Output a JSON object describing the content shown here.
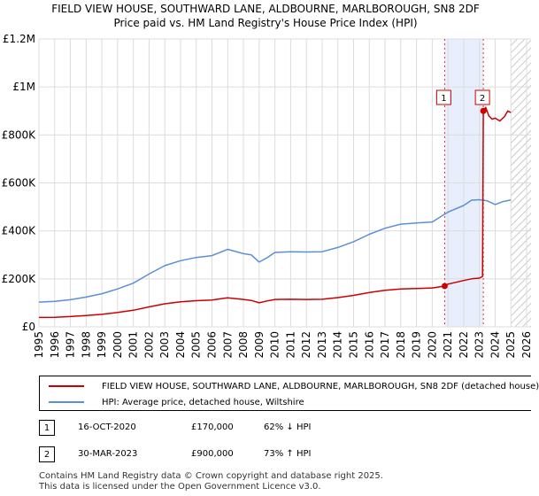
{
  "chart_data": {
    "type": "line",
    "title_line1": "FIELD VIEW HOUSE, SOUTHWARD LANE, ALDBOURNE, MARLBOROUGH, SN8 2DF",
    "title_line2": "Price paid vs. HM Land Registry's House Price Index (HPI)",
    "xlim": [
      1995,
      2026
    ],
    "ylim": [
      0,
      1200000
    ],
    "x_ticks": [
      1995,
      1996,
      1997,
      1998,
      1999,
      2000,
      2001,
      2002,
      2003,
      2004,
      2005,
      2006,
      2007,
      2008,
      2009,
      2010,
      2011,
      2012,
      2013,
      2014,
      2015,
      2016,
      2017,
      2018,
      2019,
      2020,
      2021,
      2022,
      2023,
      2024,
      2025,
      2026
    ],
    "y_ticks": [
      {
        "value": 0,
        "label": "£0"
      },
      {
        "value": 200000,
        "label": "£200K"
      },
      {
        "value": 400000,
        "label": "£400K"
      },
      {
        "value": 600000,
        "label": "£600K"
      },
      {
        "value": 800000,
        "label": "£800K"
      },
      {
        "value": 1000000,
        "label": "£1M"
      },
      {
        "value": 1200000,
        "label": "£1.2M"
      }
    ],
    "grid": true,
    "shaded_region": [
      2020.79,
      2023.25
    ],
    "future_hatch_start": 2025.0,
    "series": [
      {
        "name": "FIELD VIEW HOUSE, SOUTHWARD LANE, ALDBOURNE, MARLBOROUGH, SN8 2DF (detached house)",
        "color": "#cc0000",
        "points": [
          [
            1995,
            39000
          ],
          [
            1996,
            40000
          ],
          [
            1997,
            43000
          ],
          [
            1998,
            47000
          ],
          [
            1999,
            52000
          ],
          [
            2000,
            60000
          ],
          [
            2001,
            69000
          ],
          [
            2002,
            83000
          ],
          [
            2003,
            96000
          ],
          [
            2004,
            104000
          ],
          [
            2005,
            109000
          ],
          [
            2006,
            112000
          ],
          [
            2007,
            121000
          ],
          [
            2008,
            114000
          ],
          [
            2008.5,
            110000
          ],
          [
            2009,
            100000
          ],
          [
            2009.5,
            108000
          ],
          [
            2010,
            114000
          ],
          [
            2011,
            115000
          ],
          [
            2012,
            114000
          ],
          [
            2013,
            115000
          ],
          [
            2014,
            122000
          ],
          [
            2015,
            131000
          ],
          [
            2016,
            143000
          ],
          [
            2017,
            152000
          ],
          [
            2018,
            158000
          ],
          [
            2019,
            160000
          ],
          [
            2020,
            162000
          ],
          [
            2020.79,
            170000
          ],
          [
            2021,
            178000
          ],
          [
            2022,
            193000
          ],
          [
            2022.5,
            200000
          ],
          [
            2023,
            203000
          ],
          [
            2023.2,
            210000
          ],
          [
            2023.25,
            900000
          ],
          [
            2023.4,
            915000
          ],
          [
            2023.6,
            880000
          ],
          [
            2023.8,
            866000
          ],
          [
            2024,
            870000
          ],
          [
            2024.3,
            858000
          ],
          [
            2024.6,
            877000
          ],
          [
            2024.8,
            900000
          ],
          [
            2025,
            893000
          ]
        ]
      },
      {
        "name": "HPI: Average price, detached house, Wiltshire",
        "color": "#5b8fd6",
        "points": [
          [
            1995,
            103000
          ],
          [
            1996,
            106000
          ],
          [
            1997,
            113000
          ],
          [
            1998,
            124000
          ],
          [
            1999,
            138000
          ],
          [
            2000,
            158000
          ],
          [
            2001,
            182000
          ],
          [
            2002,
            220000
          ],
          [
            2003,
            255000
          ],
          [
            2004,
            276000
          ],
          [
            2005,
            289000
          ],
          [
            2006,
            297000
          ],
          [
            2007,
            323000
          ],
          [
            2008,
            305000
          ],
          [
            2008.5,
            300000
          ],
          [
            2009,
            270000
          ],
          [
            2009.5,
            288000
          ],
          [
            2010,
            310000
          ],
          [
            2011,
            313000
          ],
          [
            2012,
            312000
          ],
          [
            2013,
            313000
          ],
          [
            2014,
            331000
          ],
          [
            2015,
            355000
          ],
          [
            2016,
            386000
          ],
          [
            2017,
            411000
          ],
          [
            2018,
            428000
          ],
          [
            2019,
            433000
          ],
          [
            2020,
            437000
          ],
          [
            2021,
            478000
          ],
          [
            2022,
            506000
          ],
          [
            2022.5,
            528000
          ],
          [
            2023,
            530000
          ],
          [
            2023.5,
            525000
          ],
          [
            2024,
            510000
          ],
          [
            2024.5,
            522000
          ],
          [
            2025,
            529000
          ]
        ]
      }
    ],
    "sales": [
      {
        "marker": "1",
        "year": 2020.79,
        "value": 170000
      },
      {
        "marker": "2",
        "year": 2023.25,
        "value": 900000
      }
    ]
  },
  "legend": {
    "property_label": "FIELD VIEW HOUSE, SOUTHWARD LANE, ALDBOURNE, MARLBOROUGH, SN8 2DF (detached house)",
    "hpi_label": "HPI: Average price, detached house, Wiltshire",
    "property_color": "#cc0000",
    "hpi_color": "#5b8fd6"
  },
  "sales_table": [
    {
      "marker": "1",
      "date": "16-OCT-2020",
      "price": "£170,000",
      "hpi": "62% ↓ HPI"
    },
    {
      "marker": "2",
      "date": "30-MAR-2023",
      "price": "£900,000",
      "hpi": "73% ↑ HPI"
    }
  ],
  "footer": {
    "line1": "Contains HM Land Registry data © Crown copyright and database right 2025.",
    "line2": "This data is licensed under the Open Government Licence v3.0."
  }
}
